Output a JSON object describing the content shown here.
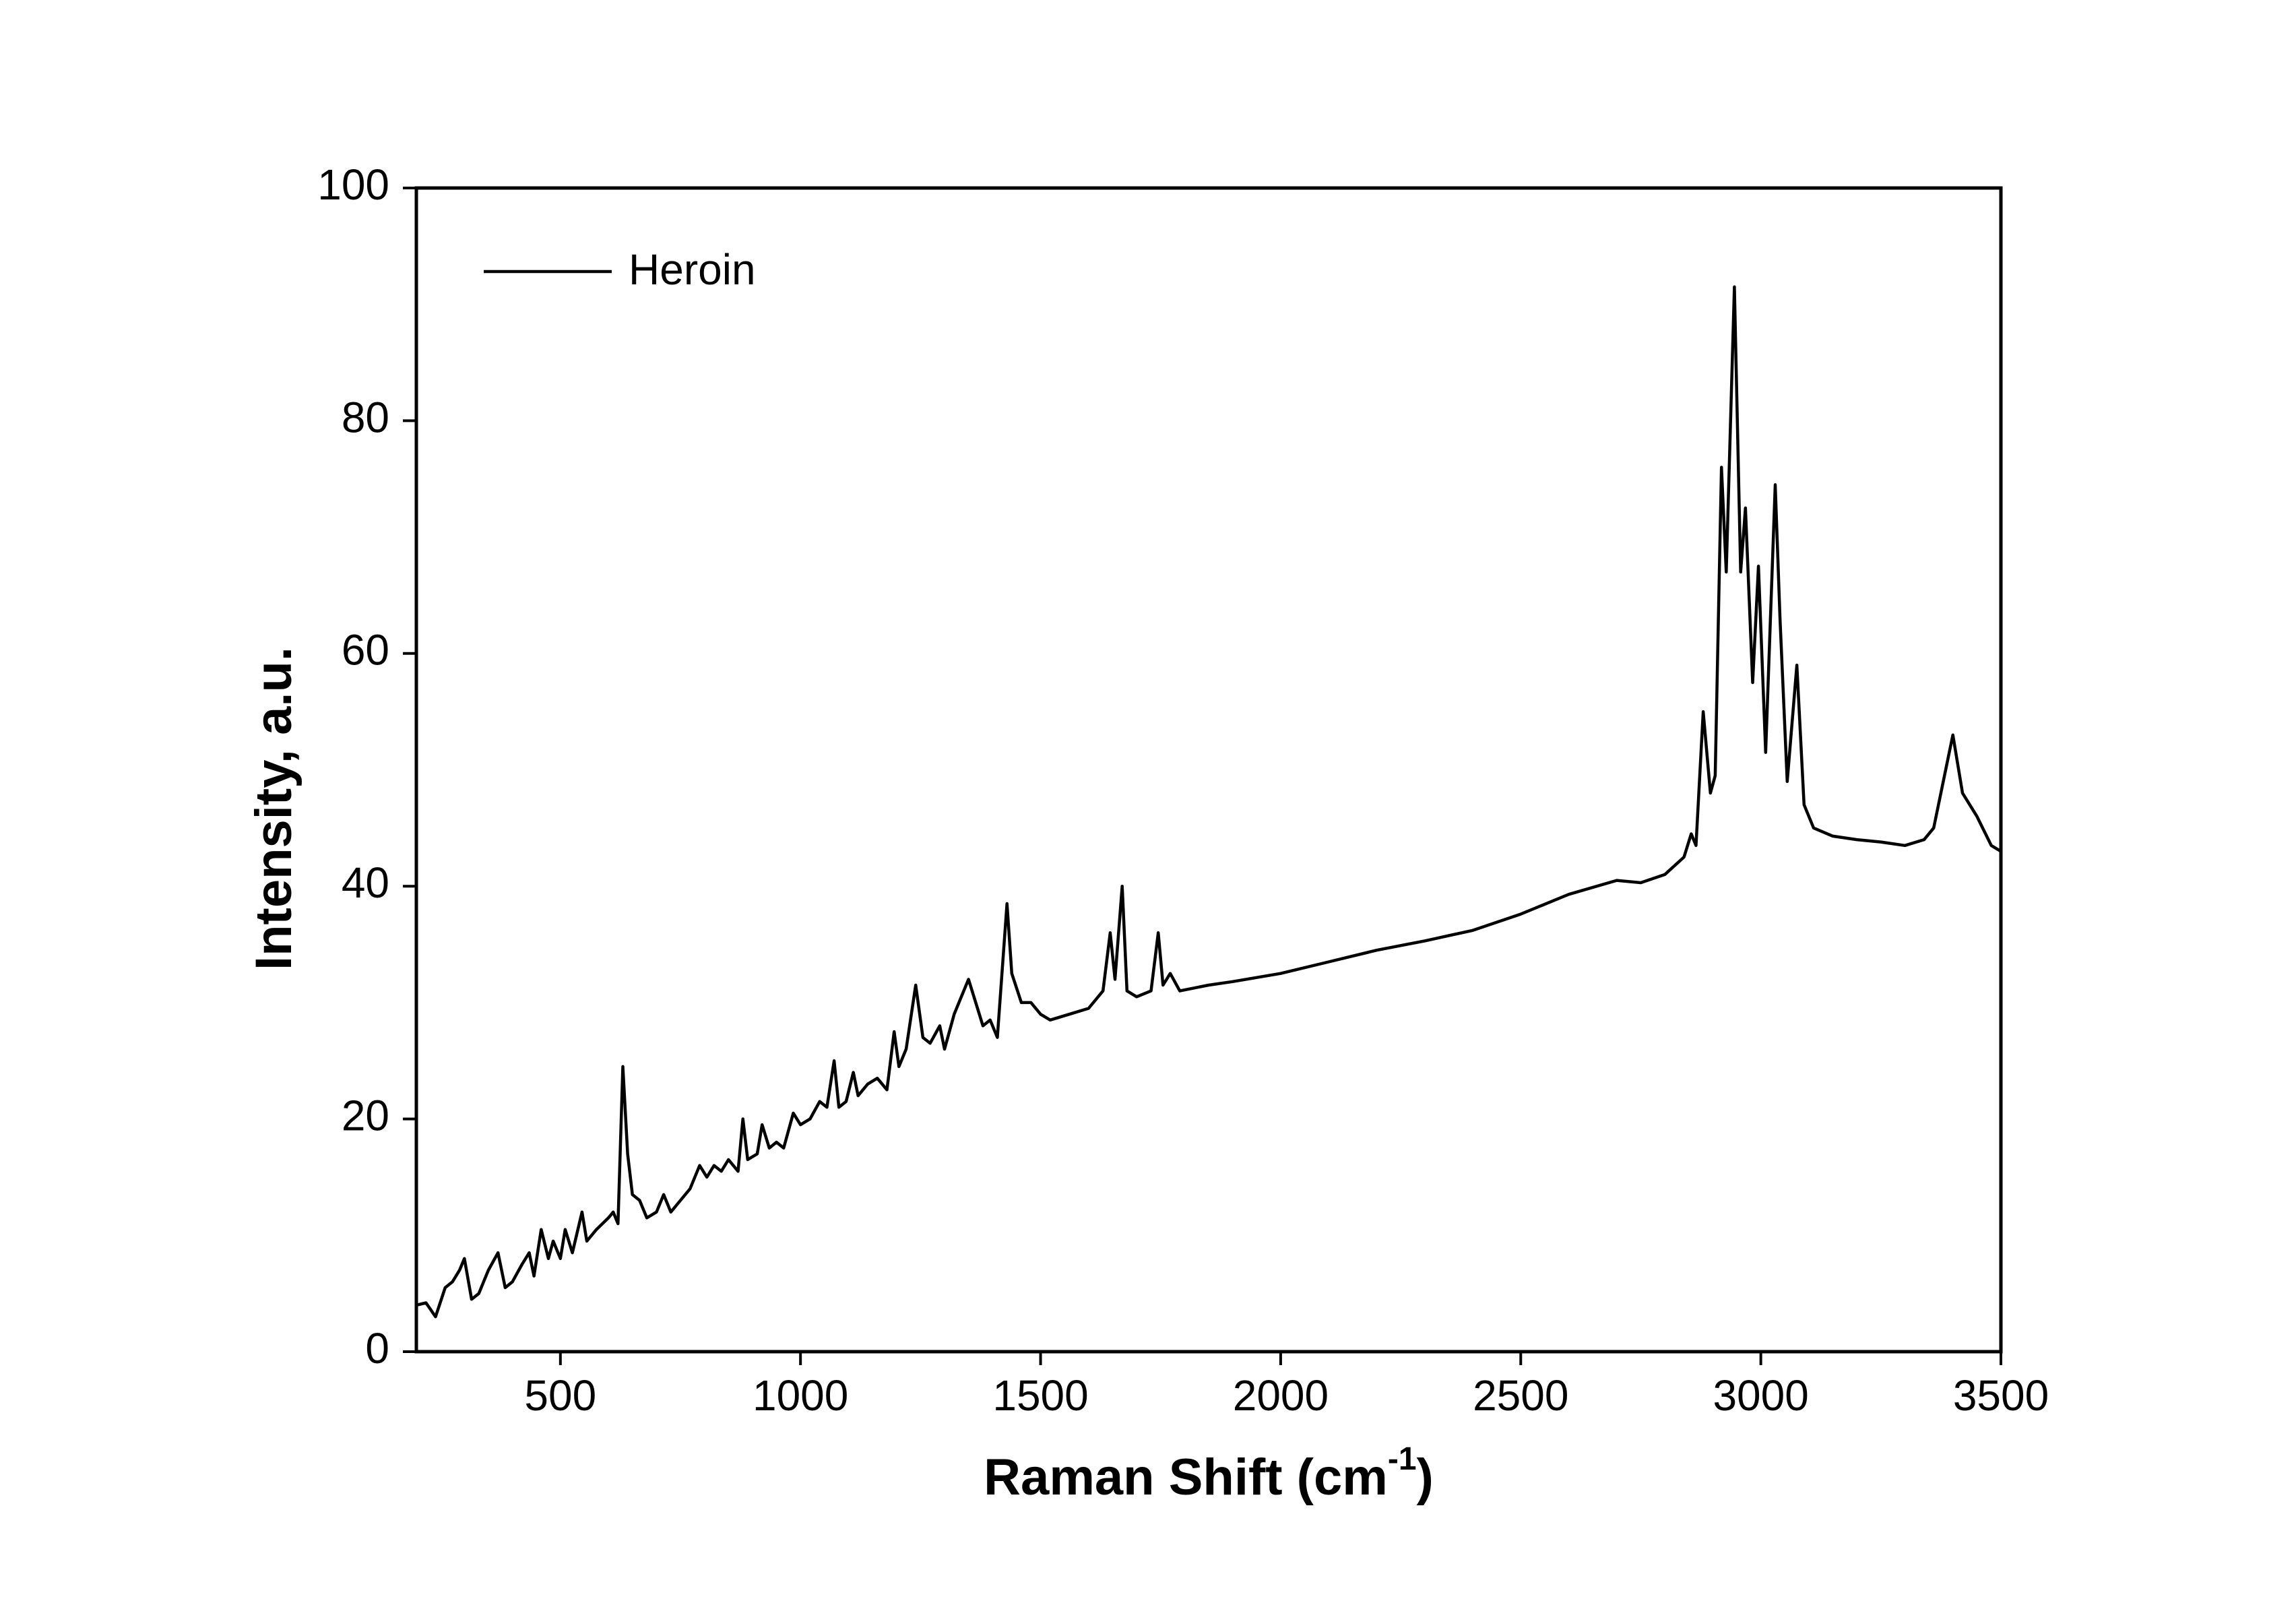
{
  "chart_data": {
    "type": "line",
    "xlabel": {
      "text": "Raman Shift (cm",
      "superscript": "-1",
      "suffix": ")"
    },
    "ylabel": "Intensity, a.u.",
    "x": [
      200,
      220,
      240,
      260,
      275,
      290,
      300,
      315,
      330,
      350,
      370,
      385,
      400,
      420,
      435,
      445,
      460,
      475,
      485,
      500,
      510,
      525,
      545,
      555,
      575,
      600,
      610,
      620,
      630,
      640,
      650,
      665,
      680,
      700,
      715,
      730,
      750,
      770,
      790,
      805,
      820,
      835,
      850,
      870,
      880,
      890,
      910,
      920,
      935,
      950,
      965,
      985,
      1000,
      1020,
      1040,
      1055,
      1070,
      1080,
      1095,
      1110,
      1120,
      1140,
      1160,
      1180,
      1195,
      1205,
      1220,
      1240,
      1255,
      1270,
      1290,
      1300,
      1320,
      1335,
      1350,
      1365,
      1380,
      1395,
      1410,
      1430,
      1440,
      1460,
      1480,
      1500,
      1520,
      1560,
      1600,
      1630,
      1645,
      1655,
      1670,
      1680,
      1700,
      1730,
      1745,
      1755,
      1770,
      1790,
      1850,
      1900,
      2000,
      2100,
      2200,
      2300,
      2400,
      2500,
      2600,
      2700,
      2750,
      2800,
      2840,
      2855,
      2865,
      2880,
      2895,
      2905,
      2918,
      2928,
      2945,
      2958,
      2968,
      2983,
      2995,
      3010,
      3030,
      3040,
      3055,
      3075,
      3090,
      3110,
      3150,
      3200,
      3250,
      3300,
      3340,
      3360,
      3400,
      3420,
      3450,
      3480,
      3500
    ],
    "series": [
      {
        "name": "Heroin",
        "color": "#000000",
        "values": [
          4,
          4.2,
          3,
          5.5,
          6,
          7,
          8,
          4.5,
          5,
          7,
          8.5,
          5.5,
          6,
          7.5,
          8.5,
          6.5,
          10.5,
          8,
          9.5,
          8,
          10.5,
          8.5,
          12,
          9.5,
          10.5,
          11.5,
          12,
          11,
          24.5,
          17,
          13.5,
          13,
          11.5,
          12,
          13.5,
          12,
          13,
          14,
          16,
          15,
          16,
          15.5,
          16.5,
          15.5,
          20,
          16.5,
          17,
          19.5,
          17.5,
          18,
          17.5,
          20.5,
          19.5,
          20,
          21.5,
          21,
          25,
          21,
          21.5,
          24,
          22,
          23,
          23.5,
          22.5,
          27.5,
          24.5,
          26,
          31.5,
          27,
          26.5,
          28,
          26,
          29,
          30.5,
          32,
          30,
          28,
          28.5,
          27,
          38.5,
          32.5,
          30,
          30,
          29,
          28.5,
          29,
          29.5,
          31,
          36,
          32,
          40,
          31,
          30.5,
          31,
          36,
          31.5,
          32.5,
          31,
          31.5,
          31.8,
          32.5,
          33.5,
          34.5,
          35.3,
          36.2,
          37.6,
          39.3,
          40.5,
          40.3,
          41,
          42.5,
          44.5,
          43.5,
          55,
          48,
          49.5,
          76,
          67,
          91.5,
          67,
          72.5,
          57.5,
          67.5,
          51.5,
          74.5,
          63,
          49,
          59,
          47,
          45,
          44.3,
          44,
          43.8,
          43.5,
          44,
          45,
          53,
          48,
          46,
          43.5,
          43
        ]
      }
    ],
    "xlim": [
      200,
      3500
    ],
    "xticks": [
      500,
      1000,
      1500,
      2000,
      2500,
      3000,
      3500
    ],
    "ylim": [
      0,
      100
    ],
    "yticks": [
      0,
      20,
      40,
      60,
      80,
      100
    ],
    "legend": "upper left",
    "grid": false
  }
}
